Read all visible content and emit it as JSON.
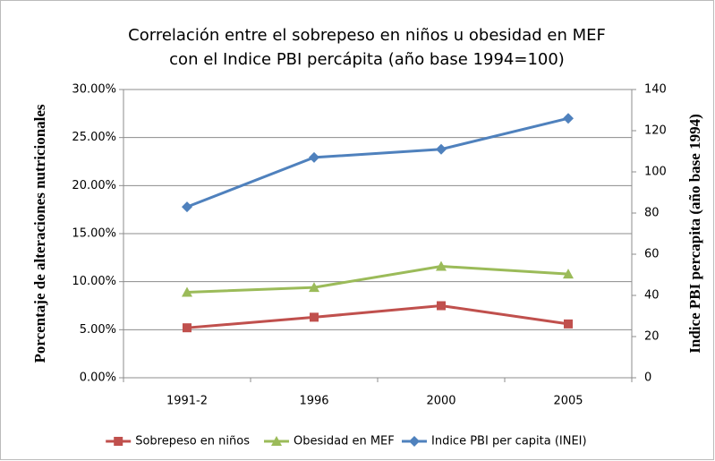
{
  "chart_data": {
    "type": "line",
    "title": [
      "Correlación entre el sobrepeso en niños u obesidad en MEF",
      "con el Indice PBI percápita (año base 1994=100)"
    ],
    "ylabel": "Porcentaje de alteraciones nutricionales",
    "y2label": "Indice PBI percapita (año base 1994)",
    "categories": [
      "1991-2",
      "1996",
      "2000",
      "2005"
    ],
    "series": [
      {
        "name": "Sobrepeso en niños",
        "color": "#c0504d",
        "marker": "square",
        "values": [
          5.2,
          6.3,
          7.5,
          5.6
        ]
      },
      {
        "name": "Obesidad en MEF",
        "color": "#9bbb59",
        "marker": "triangle",
        "values": [
          8.9,
          9.4,
          11.6,
          10.8
        ]
      },
      {
        "name": "Indice PBI per capita (INEI)",
        "color": "#4f81bd",
        "marker": "diamond",
        "axis": "y2",
        "values": [
          83,
          107,
          111,
          126
        ]
      }
    ],
    "ylim": [
      0,
      30
    ],
    "yticks": [
      {
        "value": 0,
        "label": "0.00%"
      },
      {
        "value": 5,
        "label": "5.00%"
      },
      {
        "value": 10,
        "label": "10.00%"
      },
      {
        "value": 15,
        "label": "15.00%"
      },
      {
        "value": 20,
        "label": "20.00%"
      },
      {
        "value": 25,
        "label": "25.00%"
      },
      {
        "value": 30,
        "label": "30.00%"
      }
    ],
    "y2lim": [
      0,
      140
    ],
    "y2ticks": [
      0,
      20,
      40,
      60,
      80,
      100,
      120,
      140
    ],
    "grid": true,
    "legend": "bottom"
  }
}
